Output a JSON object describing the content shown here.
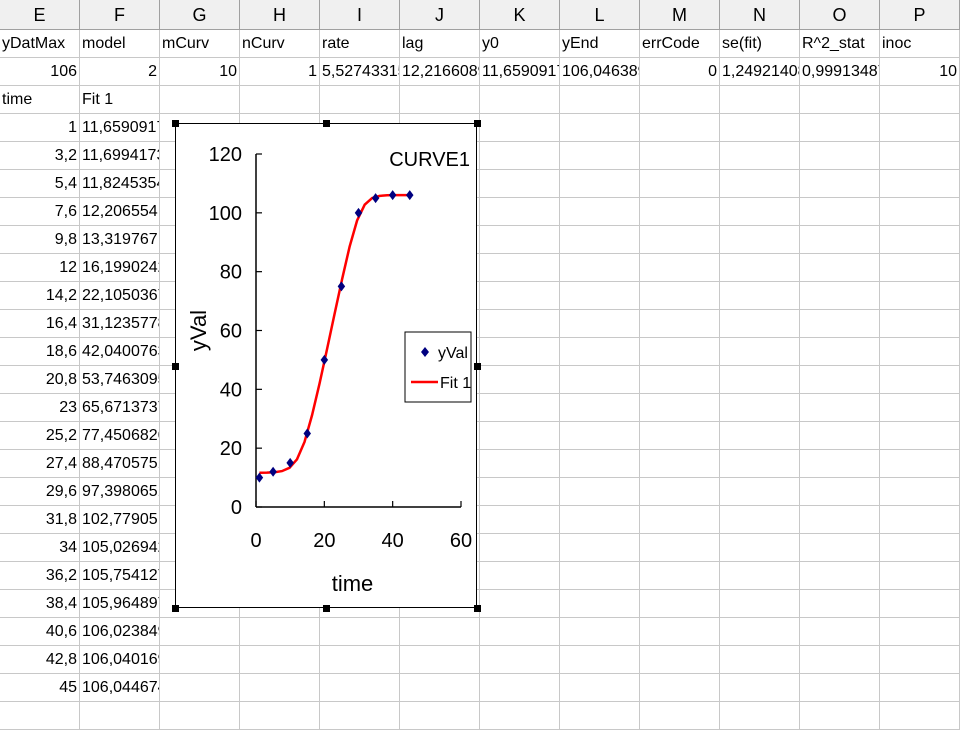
{
  "columns": [
    "E",
    "F",
    "G",
    "H",
    "I",
    "J",
    "K",
    "L",
    "M",
    "N",
    "O",
    "P"
  ],
  "header_row": [
    "yDatMax",
    "model",
    "mCurv",
    "nCurv",
    "rate",
    "lag",
    "y0",
    "yEnd",
    "errCode",
    "se(fit)",
    "R^2_stat",
    "inoc"
  ],
  "value_row": [
    "106",
    "2",
    "10",
    "1",
    "5,52743315",
    "12,2166089",
    "11,6590917",
    "106,046389",
    "0",
    "1,24921408",
    "0,99913487",
    "10"
  ],
  "label_row": [
    "time",
    "Fit 1"
  ],
  "table_rows": [
    [
      "1",
      "11,6590917"
    ],
    [
      "3,2",
      "11,6994173"
    ],
    [
      "5,4",
      "11,8245354"
    ],
    [
      "7,6",
      "12,206554"
    ],
    [
      "9,8",
      "13,319767"
    ],
    [
      "12",
      "16,1990242"
    ],
    [
      "14,2",
      "22,1050367"
    ],
    [
      "16,4",
      "31,1235778"
    ],
    [
      "18,6",
      "42,0400763"
    ],
    [
      "20,8",
      "53,7463095"
    ],
    [
      "23",
      "65,6713737"
    ],
    [
      "25,2",
      "77,4506826"
    ],
    [
      "27,4",
      "88,4705751"
    ],
    [
      "29,6",
      "97,3980651"
    ],
    [
      "31,8",
      "102,77905"
    ],
    [
      "34",
      "105,026942"
    ],
    [
      "36,2",
      "105,754127"
    ],
    [
      "38,4",
      "105,964897"
    ],
    [
      "40,6",
      "106,023849"
    ],
    [
      "42,8",
      "106,040169"
    ],
    [
      "45",
      "106,044674"
    ]
  ],
  "chart_data": {
    "type": "scatter",
    "title": "CURVE1",
    "xlabel": "time",
    "ylabel": "yVal",
    "xlim": [
      0,
      60
    ],
    "ylim": [
      0,
      120
    ],
    "x_ticks": [
      0,
      20,
      40,
      60
    ],
    "y_ticks": [
      0,
      20,
      40,
      60,
      80,
      100,
      120
    ],
    "grid": false,
    "legend_position": "right",
    "series": [
      {
        "name": "yVal",
        "kind": "marker",
        "color": "#000080",
        "x": [
          1,
          5,
          10,
          15,
          20,
          25,
          30,
          35,
          40,
          45
        ],
        "y": [
          10,
          12,
          15,
          25,
          50,
          75,
          100,
          105,
          106,
          106
        ]
      },
      {
        "name": "Fit 1",
        "kind": "line",
        "color": "#ff0000",
        "x": [
          1,
          3.2,
          5.4,
          7.6,
          9.8,
          12,
          14.2,
          16.4,
          18.6,
          20.8,
          23,
          25.2,
          27.4,
          29.6,
          31.8,
          34,
          36.2,
          38.4,
          40.6,
          42.8,
          45
        ],
        "y": [
          11.6590917,
          11.6994173,
          11.8245354,
          12.206554,
          13.319767,
          16.1990242,
          22.1050367,
          31.1235778,
          42.0400763,
          53.7463095,
          65.6713737,
          77.4506826,
          88.4705751,
          97.3980651,
          102.77905,
          105.026942,
          105.754127,
          105.964897,
          106.023849,
          106.040169,
          106.044674
        ]
      }
    ]
  }
}
